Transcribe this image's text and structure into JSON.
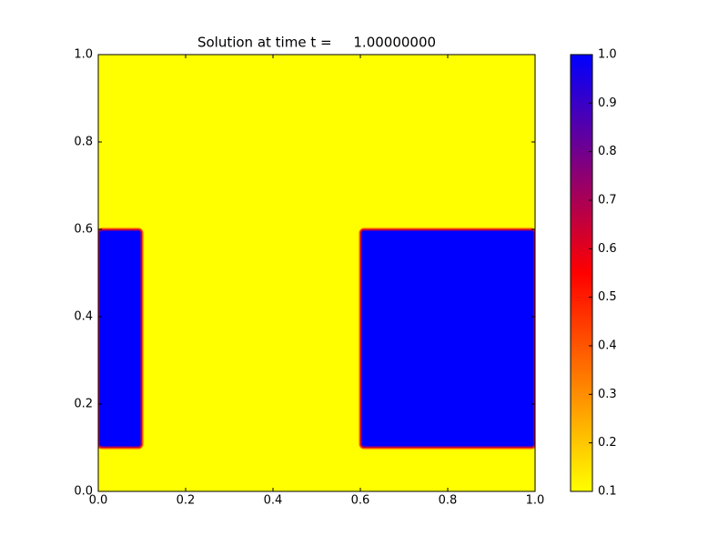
{
  "chart_data": {
    "type": "heatmap",
    "title": "Solution at time t =     1.00000000",
    "xlim": [
      0,
      1
    ],
    "ylim": [
      0,
      1
    ],
    "xticks": [
      {
        "value": 0,
        "label": "0.0"
      },
      0.2,
      0.4,
      0.6,
      0.8,
      {
        "value": 1,
        "label": "1.0"
      }
    ],
    "yticks": [
      {
        "value": 0,
        "label": "0.0"
      },
      0.2,
      0.4,
      0.6,
      0.8,
      {
        "value": 1,
        "label": "1.0"
      }
    ],
    "background": 0.1,
    "regions": [
      {
        "x": [
          0,
          0.1
        ],
        "y": [
          0.1,
          0.6
        ],
        "value": 1.0
      },
      {
        "x": [
          0.6,
          1
        ],
        "y": [
          0.1,
          0.6
        ],
        "value": 1.0
      }
    ],
    "clim": [
      0.1,
      1.0
    ],
    "colormap": [
      "#ffff00",
      "#ff0000",
      "#0000ff"
    ],
    "cticks": [
      0.1,
      0.2,
      0.3,
      0.4,
      0.5,
      0.6,
      0.7,
      0.8,
      0.9,
      {
        "value": 1.0,
        "label": "1.0"
      }
    ]
  }
}
